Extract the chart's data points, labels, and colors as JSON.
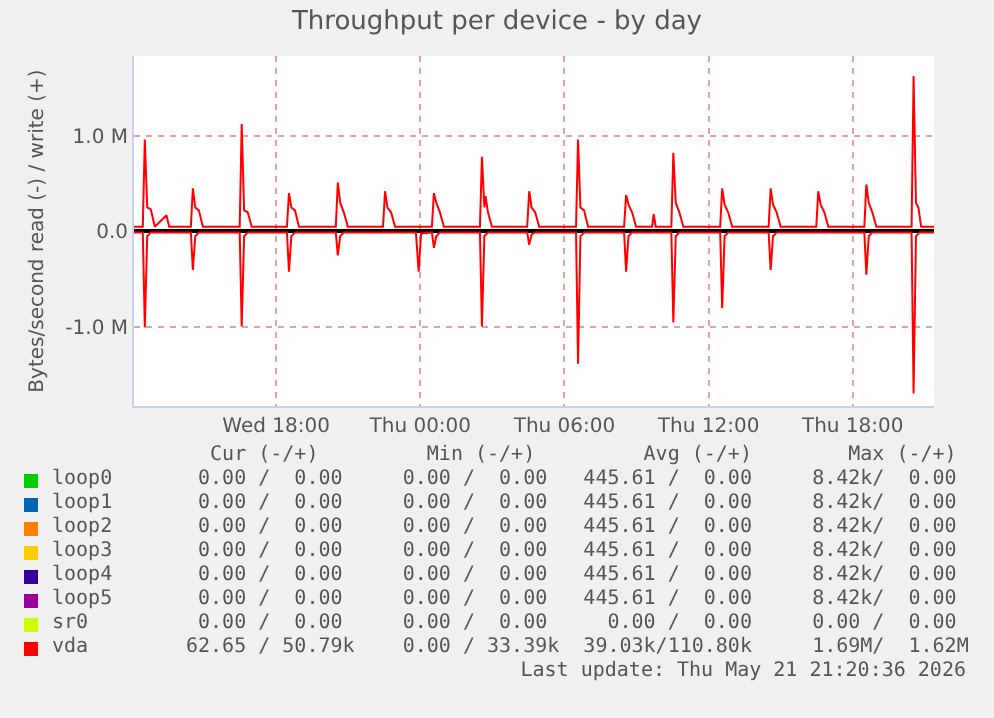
{
  "chart_data": {
    "type": "line",
    "title": "Throughput per device - by day",
    "ylabel": "Bytes/second read (-) / write (+)",
    "xlim": [
      "2026-05-20T12:05",
      "2026-05-21T21:23"
    ],
    "xticks": [
      {
        "value": "2026-05-20T18:00",
        "label": "Wed 18:00"
      },
      {
        "value": "2026-05-21T00:00",
        "label": "Thu 00:00"
      },
      {
        "value": "2026-05-21T06:00",
        "label": "Thu 06:00"
      },
      {
        "value": "2026-05-21T12:00",
        "label": "Thu 12:00"
      },
      {
        "value": "2026-05-21T18:00",
        "label": "Thu 18:00"
      }
    ],
    "ylim": [
      -1820000,
      1830000
    ],
    "yticks": [
      {
        "value": -1000000,
        "label": "-1.0 M"
      },
      {
        "value": 0,
        "label": "0.0"
      },
      {
        "value": 1000000,
        "label": "1.0 M"
      }
    ],
    "grid": true,
    "legend": "bottom",
    "marker": "none",
    "line_style": "solid",
    "series": [
      {
        "name": "loop0",
        "color": "#00cc00"
      },
      {
        "name": "loop1",
        "color": "#0066b3"
      },
      {
        "name": "loop2",
        "color": "#ff8000"
      },
      {
        "name": "loop3",
        "color": "#ffcc00"
      },
      {
        "name": "loop4",
        "color": "#330099"
      },
      {
        "name": "loop5",
        "color": "#990099"
      },
      {
        "name": "sr0",
        "color": "#ccff00"
      },
      {
        "name": "vda",
        "color": "#ff0000",
        "x": [
          "2026-05-20T12:05",
          "2026-05-20T12:27",
          "2026-05-20T12:32",
          "2026-05-20T12:38",
          "2026-05-20T12:47",
          "2026-05-20T12:57",
          "2026-05-20T13:26",
          "2026-05-20T13:33",
          "2026-05-20T14:27",
          "2026-05-20T14:32",
          "2026-05-20T14:38",
          "2026-05-20T14:47",
          "2026-05-20T14:57",
          "2026-05-20T16:29",
          "2026-05-20T16:34",
          "2026-05-20T16:40",
          "2026-05-20T16:49",
          "2026-05-20T16:59",
          "2026-05-20T18:27",
          "2026-05-20T18:32",
          "2026-05-20T18:38",
          "2026-05-20T18:47",
          "2026-05-20T18:57",
          "2026-05-20T20:29",
          "2026-05-20T20:34",
          "2026-05-20T20:40",
          "2026-05-20T20:49",
          "2026-05-20T20:59",
          "2026-05-20T22:27",
          "2026-05-20T22:32",
          "2026-05-20T22:38",
          "2026-05-20T22:47",
          "2026-05-20T22:57",
          "2026-05-21T00:29",
          "2026-05-21T00:34",
          "2026-05-21T00:40",
          "2026-05-21T00:49",
          "2026-05-21T00:59",
          "2026-05-21T02:29",
          "2026-05-21T02:34",
          "2026-05-21T02:40",
          "2026-05-21T02:43",
          "2026-05-21T02:49",
          "2026-05-21T02:59",
          "2026-05-21T04:27",
          "2026-05-21T04:32",
          "2026-05-21T04:38",
          "2026-05-21T04:47",
          "2026-05-21T04:57",
          "2026-05-21T06:29",
          "2026-05-21T06:34",
          "2026-05-21T06:40",
          "2026-05-21T06:49",
          "2026-05-21T06:59",
          "2026-05-21T08:29",
          "2026-05-21T08:34",
          "2026-05-21T08:40",
          "2026-05-21T08:49",
          "2026-05-21T08:59",
          "2026-05-21T09:39",
          "2026-05-21T09:43",
          "2026-05-21T09:48",
          "2026-05-21T10:27",
          "2026-05-21T10:32",
          "2026-05-21T10:38",
          "2026-05-21T10:47",
          "2026-05-21T10:57",
          "2026-05-21T12:29",
          "2026-05-21T12:34",
          "2026-05-21T12:40",
          "2026-05-21T12:49",
          "2026-05-21T12:59",
          "2026-05-21T14:30",
          "2026-05-21T14:35",
          "2026-05-21T14:41",
          "2026-05-21T14:50",
          "2026-05-21T15:00",
          "2026-05-21T16:29",
          "2026-05-21T16:34",
          "2026-05-21T16:40",
          "2026-05-21T16:49",
          "2026-05-21T16:59",
          "2026-05-21T18:29",
          "2026-05-21T18:34",
          "2026-05-21T18:40",
          "2026-05-21T18:49",
          "2026-05-21T18:59",
          "2026-05-21T20:27",
          "2026-05-21T20:32",
          "2026-05-21T20:38",
          "2026-05-21T20:44",
          "2026-05-21T20:51",
          "2026-05-21T21:23"
        ],
        "values": [
          50000,
          50000,
          960000,
          250000,
          230000,
          50000,
          170000,
          50000,
          50000,
          450000,
          250000,
          220000,
          50000,
          50000,
          1120000,
          220000,
          200000,
          50000,
          50000,
          400000,
          250000,
          220000,
          50000,
          50000,
          510000,
          300000,
          200000,
          50000,
          50000,
          420000,
          250000,
          200000,
          50000,
          50000,
          400000,
          300000,
          200000,
          50000,
          50000,
          780000,
          250000,
          370000,
          200000,
          50000,
          50000,
          420000,
          250000,
          200000,
          50000,
          50000,
          960000,
          250000,
          220000,
          50000,
          50000,
          380000,
          280000,
          200000,
          50000,
          50000,
          180000,
          50000,
          50000,
          820000,
          300000,
          200000,
          50000,
          50000,
          450000,
          280000,
          200000,
          50000,
          50000,
          450000,
          280000,
          200000,
          50000,
          50000,
          420000,
          280000,
          200000,
          50000,
          50000,
          490000,
          300000,
          200000,
          50000,
          50000,
          1620000,
          300000,
          250000,
          50000,
          50000
        ]
      },
      {
        "color": "#ff0000",
        "x": [
          "2026-05-20T12:05",
          "2026-05-20T12:27",
          "2026-05-20T12:32",
          "2026-05-20T12:38",
          "2026-05-20T12:47",
          "2026-05-20T14:27",
          "2026-05-20T14:32",
          "2026-05-20T14:38",
          "2026-05-20T14:47",
          "2026-05-20T16:29",
          "2026-05-20T16:34",
          "2026-05-20T16:40",
          "2026-05-20T16:49",
          "2026-05-20T18:27",
          "2026-05-20T18:32",
          "2026-05-20T18:38",
          "2026-05-20T18:47",
          "2026-05-20T20:29",
          "2026-05-20T20:34",
          "2026-05-20T20:40",
          "2026-05-20T20:49",
          "2026-05-20T23:49",
          "2026-05-20T23:56",
          "2026-05-21T00:02",
          "2026-05-21T00:29",
          "2026-05-21T00:34",
          "2026-05-21T00:40",
          "2026-05-21T00:49",
          "2026-05-21T02:29",
          "2026-05-21T02:34",
          "2026-05-21T02:40",
          "2026-05-21T02:49",
          "2026-05-21T04:27",
          "2026-05-21T04:32",
          "2026-05-21T04:38",
          "2026-05-21T04:47",
          "2026-05-21T06:29",
          "2026-05-21T06:34",
          "2026-05-21T06:40",
          "2026-05-21T06:49",
          "2026-05-21T08:29",
          "2026-05-21T08:34",
          "2026-05-21T08:40",
          "2026-05-21T08:49",
          "2026-05-21T10:27",
          "2026-05-21T10:32",
          "2026-05-21T10:38",
          "2026-05-21T10:47",
          "2026-05-21T12:29",
          "2026-05-21T12:34",
          "2026-05-21T12:40",
          "2026-05-21T12:49",
          "2026-05-21T14:30",
          "2026-05-21T14:35",
          "2026-05-21T14:41",
          "2026-05-21T14:50",
          "2026-05-21T18:29",
          "2026-05-21T18:34",
          "2026-05-21T18:40",
          "2026-05-21T18:49",
          "2026-05-21T20:27",
          "2026-05-21T20:32",
          "2026-05-21T20:38",
          "2026-05-21T20:47",
          "2026-05-21T21:23"
        ],
        "values": [
          -10000,
          -10000,
          -1000000,
          -50000,
          -10000,
          -10000,
          -400000,
          -50000,
          -10000,
          -10000,
          -990000,
          -50000,
          -10000,
          -10000,
          -420000,
          -50000,
          -10000,
          -10000,
          -250000,
          -50000,
          -10000,
          -10000,
          -420000,
          -20000,
          -10000,
          -170000,
          -50000,
          -10000,
          -10000,
          -990000,
          -50000,
          -10000,
          -10000,
          -140000,
          -30000,
          -10000,
          -10000,
          -1380000,
          -50000,
          -10000,
          -10000,
          -420000,
          -50000,
          -10000,
          -10000,
          -950000,
          -50000,
          -10000,
          -10000,
          -800000,
          -50000,
          -10000,
          -10000,
          -400000,
          -50000,
          -10000,
          -10000,
          -450000,
          -50000,
          -10000,
          -10000,
          -1690000,
          -50000,
          -10000,
          -10000
        ]
      }
    ],
    "annotations": [
      "  Cur (-/+)         Min (-/+)         Avg (-/+)        Max (-/+)",
      " 0.00 /  0.00     0.00 /  0.00   445.61 /  0.00     8.42k/  0.00",
      " 0.00 /  0.00     0.00 /  0.00   445.61 /  0.00     8.42k/  0.00",
      " 0.00 /  0.00     0.00 /  0.00   445.61 /  0.00     8.42k/  0.00",
      " 0.00 /  0.00     0.00 /  0.00   445.61 /  0.00     8.42k/  0.00",
      " 0.00 /  0.00     0.00 /  0.00   445.61 /  0.00     8.42k/  0.00",
      " 0.00 /  0.00     0.00 /  0.00   445.61 /  0.00     8.42k/  0.00",
      " 0.00 /  0.00     0.00 /  0.00     0.00 /  0.00     0.00 /  0.00",
      "62.65 / 50.79k    0.00 / 33.39k  39.03k/110.80k     1.69M/  1.62M",
      "Last update: Thu May 21 21:20:36 2026"
    ]
  }
}
